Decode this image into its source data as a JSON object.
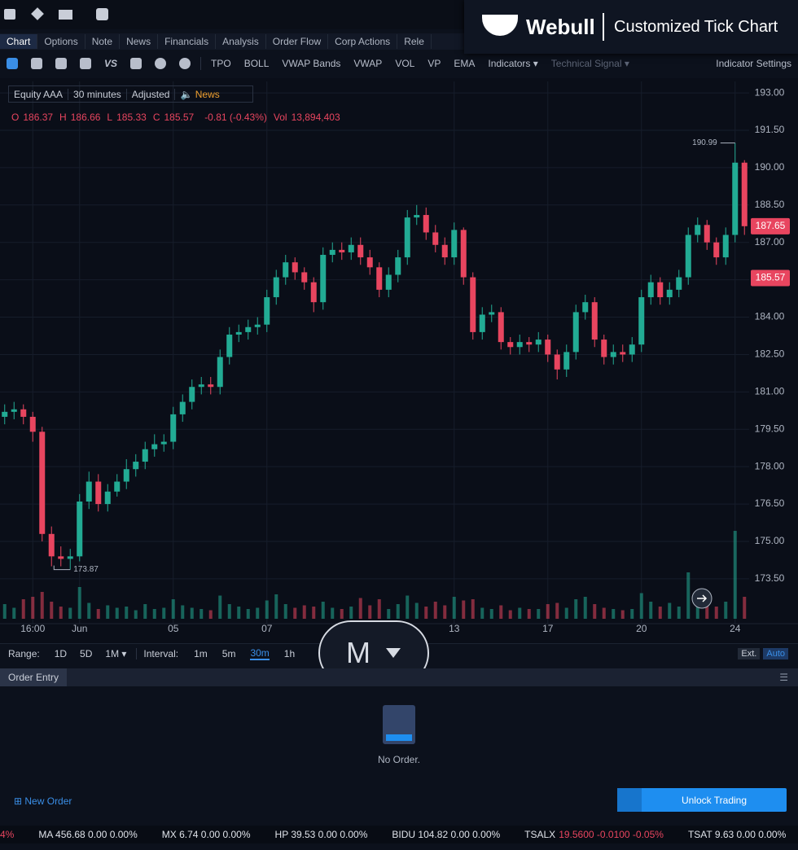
{
  "header": {
    "brand": "Webull",
    "subtitle": "Customized Tick Chart"
  },
  "tabs": [
    "Chart",
    "Options",
    "Note",
    "News",
    "Financials",
    "Analysis",
    "Order Flow",
    "Corp Actions",
    "Rele"
  ],
  "toolbar": {
    "vs": "VS",
    "items": [
      "TPO",
      "BOLL",
      "VWAP Bands",
      "VWAP",
      "VOL",
      "VP",
      "EMA",
      "Indicators ▾",
      "Technical Signal ▾"
    ],
    "settings": "Indicator Settings"
  },
  "info": {
    "symbol": "Equity AAA",
    "interval": "30 minutes",
    "adjust": "Adjusted",
    "news": "News"
  },
  "ohlc": [
    {
      "key": "O",
      "value": "186.37"
    },
    {
      "key": "H",
      "value": "186.66"
    },
    {
      "key": "L",
      "value": "185.33"
    },
    {
      "key": "C",
      "value": "185.57"
    },
    {
      "key": "",
      "value": "-0.81 (-0.43%)"
    },
    {
      "key": "Vol",
      "value": "13,894,403"
    }
  ],
  "chart_data": {
    "type": "candlestick",
    "up_color": "#22ab94",
    "down_color": "#e8455f",
    "grid": true,
    "x": [
      null,
      null,
      null,
      "16:00",
      null,
      null,
      null,
      null,
      "Jun",
      null,
      null,
      null,
      null,
      null,
      null,
      null,
      null,
      null,
      "05",
      null,
      null,
      null,
      null,
      null,
      null,
      null,
      null,
      null,
      "07",
      null,
      null,
      null,
      null,
      null,
      null,
      null,
      null,
      null,
      null,
      null,
      null,
      null,
      null,
      null,
      null,
      null,
      null,
      null,
      "13",
      null,
      null,
      null,
      null,
      null,
      null,
      null,
      null,
      null,
      "17",
      null,
      null,
      null,
      null,
      null,
      null,
      null,
      null,
      null,
      "20",
      null,
      null,
      null,
      null,
      null,
      null,
      null,
      null,
      null,
      "24",
      null
    ],
    "opens": [
      180.0,
      180.2,
      180.3,
      180.0,
      179.4,
      175.3,
      174.4,
      174.3,
      174.4,
      176.6,
      177.4,
      176.5,
      177.0,
      177.4,
      177.9,
      178.2,
      178.7,
      178.9,
      179.0,
      180.1,
      180.6,
      181.2,
      181.3,
      181.2,
      182.4,
      183.3,
      183.4,
      183.6,
      183.7,
      184.8,
      185.6,
      186.2,
      185.8,
      185.4,
      184.6,
      186.5,
      186.7,
      186.6,
      186.9,
      186.4,
      186.0,
      185.1,
      185.7,
      186.4,
      188.0,
      188.1,
      187.4,
      186.9,
      186.4,
      187.5,
      185.6,
      183.4,
      184.1,
      184.2,
      183.0,
      182.8,
      183.0,
      182.9,
      183.1,
      182.5,
      181.9,
      182.6,
      184.2,
      184.6,
      183.1,
      182.4,
      182.6,
      182.5,
      182.9,
      184.8,
      185.4,
      184.8,
      185.1,
      185.6,
      187.3,
      187.7,
      187.0,
      186.4,
      187.3,
      190.2
    ],
    "highs": [
      180.5,
      180.6,
      180.5,
      180.2,
      179.6,
      175.6,
      174.8,
      174.7,
      176.9,
      177.8,
      177.7,
      177.3,
      177.7,
      178.3,
      178.5,
      179.0,
      179.3,
      179.3,
      180.4,
      180.9,
      181.5,
      181.6,
      181.6,
      182.7,
      183.6,
      183.7,
      183.9,
      184.0,
      185.1,
      185.9,
      186.5,
      186.4,
      186.0,
      185.6,
      186.8,
      187.0,
      187.0,
      187.2,
      187.2,
      186.7,
      186.2,
      186.0,
      186.7,
      188.3,
      188.5,
      188.4,
      187.7,
      187.2,
      187.8,
      187.6,
      185.8,
      184.4,
      184.5,
      184.4,
      183.2,
      183.3,
      183.2,
      183.4,
      183.3,
      182.7,
      182.9,
      184.5,
      184.9,
      184.8,
      183.3,
      182.9,
      182.9,
      183.2,
      185.1,
      185.7,
      185.6,
      185.4,
      185.9,
      187.6,
      188.0,
      187.9,
      187.2,
      187.6,
      190.99,
      190.3
    ],
    "lows": [
      179.7,
      179.9,
      179.7,
      179.0,
      175.0,
      174.0,
      174.0,
      173.87,
      174.2,
      176.3,
      176.2,
      176.2,
      176.8,
      177.1,
      177.6,
      177.9,
      178.4,
      178.6,
      178.7,
      179.8,
      180.3,
      180.9,
      180.9,
      180.9,
      182.1,
      183.0,
      183.1,
      183.3,
      183.4,
      184.5,
      185.3,
      185.5,
      185.1,
      184.2,
      184.3,
      186.2,
      186.3,
      186.3,
      186.1,
      185.7,
      184.8,
      184.8,
      185.4,
      186.1,
      187.7,
      187.1,
      186.6,
      186.1,
      186.1,
      185.3,
      183.1,
      183.1,
      183.8,
      182.7,
      182.5,
      182.5,
      182.6,
      182.6,
      182.2,
      181.5,
      181.6,
      182.3,
      183.9,
      182.8,
      182.1,
      182.1,
      182.2,
      182.2,
      182.6,
      184.5,
      184.5,
      184.5,
      184.8,
      185.3,
      187.0,
      186.7,
      186.1,
      186.1,
      187.0,
      187.3
    ],
    "closes": [
      180.2,
      180.3,
      180.0,
      179.4,
      175.3,
      174.4,
      174.3,
      174.4,
      176.6,
      177.4,
      176.5,
      177.0,
      177.4,
      177.9,
      178.2,
      178.7,
      178.9,
      179.0,
      180.1,
      180.6,
      181.2,
      181.3,
      181.2,
      182.4,
      183.3,
      183.4,
      183.6,
      183.7,
      184.8,
      185.6,
      186.2,
      185.8,
      185.4,
      184.6,
      186.5,
      186.7,
      186.6,
      186.9,
      186.4,
      186.0,
      185.1,
      185.7,
      186.4,
      188.0,
      188.1,
      187.4,
      186.9,
      186.4,
      187.5,
      185.6,
      183.4,
      184.1,
      184.2,
      183.0,
      182.8,
      183.0,
      182.9,
      183.1,
      182.5,
      181.9,
      182.6,
      184.2,
      184.6,
      183.1,
      182.4,
      182.6,
      182.5,
      182.9,
      184.8,
      185.4,
      184.8,
      185.1,
      185.6,
      187.3,
      187.7,
      187.0,
      186.4,
      187.3,
      190.2,
      187.65
    ],
    "volumes": [
      1.2,
      0.9,
      1.6,
      1.8,
      2.2,
      1.4,
      1.0,
      0.9,
      2.6,
      1.3,
      0.8,
      1.1,
      0.9,
      1.0,
      0.7,
      1.2,
      0.8,
      0.9,
      1.6,
      1.1,
      0.9,
      0.8,
      0.7,
      1.9,
      1.2,
      1.0,
      0.8,
      0.9,
      1.5,
      2.0,
      1.2,
      0.9,
      1.1,
      1.0,
      1.4,
      0.9,
      0.8,
      1.0,
      1.7,
      1.1,
      1.6,
      0.8,
      1.2,
      1.9,
      1.3,
      1.0,
      1.4,
      1.1,
      1.8,
      1.5,
      1.6,
      0.9,
      0.8,
      1.1,
      0.7,
      0.9,
      0.8,
      0.8,
      1.2,
      1.3,
      0.9,
      1.6,
      1.8,
      1.2,
      0.9,
      0.8,
      0.7,
      0.8,
      2.1,
      1.4,
      1.0,
      1.3,
      1.0,
      3.8,
      1.6,
      1.2,
      1.0,
      1.4,
      7.2,
      1.8
    ],
    "ylim": [
      171.83,
      193.46
    ],
    "yticks": [
      {
        "value": 173.5,
        "label": "173.50"
      },
      {
        "value": 175,
        "label": "175.00"
      },
      {
        "value": 176.5,
        "label": "176.50"
      },
      {
        "value": 178,
        "label": "178.00"
      },
      {
        "value": 179.5,
        "label": "179.50"
      },
      {
        "value": 181,
        "label": "181.00"
      },
      {
        "value": 182.5,
        "label": "182.50"
      },
      {
        "value": 184,
        "label": "184.00"
      },
      {
        "value": 185.5,
        "label": "185.50"
      },
      {
        "value": 187,
        "label": "187.00"
      },
      {
        "value": 188.5,
        "label": "188.50"
      },
      {
        "value": 190,
        "label": "190.00"
      },
      {
        "value": 191.5,
        "label": "191.50"
      },
      {
        "value": 193,
        "label": "193.00"
      }
    ],
    "max_label": 190.99,
    "min_label": 173.87,
    "last_price": 187.65,
    "close_price": 185.57
  },
  "controls": {
    "range_label": "Range:",
    "ranges": [
      "1D",
      "5D",
      "1M ▾"
    ],
    "interval_label": "Interval:",
    "intervals": [
      "1m",
      "5m",
      "30m",
      "1h"
    ],
    "ext": "Ext.",
    "auto": "Auto",
    "overlay": "M"
  },
  "order_entry": {
    "title": "Order Entry",
    "empty": "No Order.",
    "new_order": "New Order",
    "unlock": "Unlock Trading"
  },
  "ticker": [
    {
      "text": "4%",
      "color": "#e8455f"
    },
    {
      "text": "MA 456.68 0.00 0.00%",
      "color": "#dfe3ea"
    },
    {
      "text": "MX 6.74 0.00 0.00%",
      "color": "#dfe3ea"
    },
    {
      "text": "HP 39.53 0.00 0.00%",
      "color": "#dfe3ea"
    },
    {
      "text": "BIDU 104.82 0.00 0.00%",
      "color": "#dfe3ea"
    },
    {
      "text": "TSALX",
      "color": "#dfe3ea"
    },
    {
      "text": "19.5600 -0.0100 -0.05%",
      "color": "#e8455f"
    },
    {
      "text": "TSAT 9.63 0.00 0.00%",
      "color": "#dfe3ea"
    }
  ]
}
